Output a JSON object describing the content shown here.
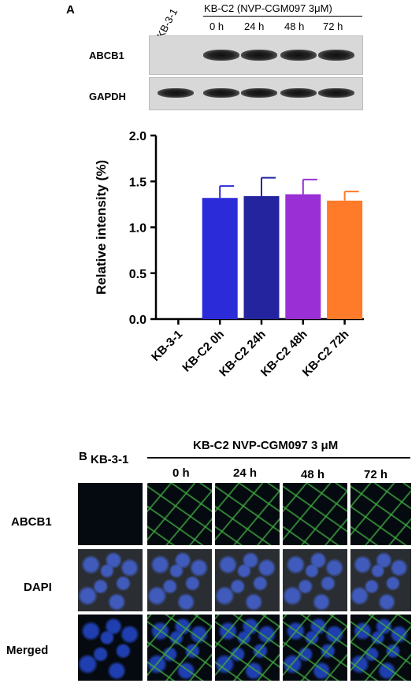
{
  "panel_a": {
    "letter": "A",
    "western_blot": {
      "lane_labels": [
        "KB-3-1",
        "0 h",
        "24 h",
        "48 h",
        "72 h"
      ],
      "group_header": "KB-C2 (NVP-CGM097 3μM)",
      "rows": [
        {
          "label": "ABCB1",
          "band_intensity": [
            0,
            1,
            1,
            1,
            1
          ]
        },
        {
          "label": "GAPDH",
          "band_intensity": [
            1,
            1,
            1,
            1,
            1
          ]
        }
      ]
    }
  },
  "chart_data": {
    "type": "bar",
    "categories": [
      "KB-3-1",
      "KB-C2 0h",
      "KB-C2 24h",
      "KB-C2 48h",
      "KB-C2 72h"
    ],
    "values": [
      0.0,
      1.32,
      1.34,
      1.36,
      1.29
    ],
    "errors": [
      0.0,
      0.13,
      0.2,
      0.16,
      0.1
    ],
    "colors": [
      "#2b2bd9",
      "#2b2bd9",
      "#24249e",
      "#9a2fd6",
      "#ff7a29"
    ],
    "ylabel": "Relative intensity (%)",
    "ylim": [
      0,
      2.0
    ],
    "yticks": [
      "0.0",
      "0.5",
      "1.0",
      "1.5",
      "2.0"
    ],
    "grid": false
  },
  "panel_b": {
    "letter": "B",
    "control_label": "KB-3-1",
    "group_header": "KB-C2 NVP-CGM097 3 μM",
    "time_labels": [
      "0 h",
      "24 h",
      "48 h",
      "72 h"
    ],
    "row_labels": [
      "ABCB1",
      "DAPI",
      "Merged"
    ],
    "colors": {
      "abcb1_stain": "#3fa83f",
      "dapi_stain": "#1f3fb0",
      "background": "#050a10"
    }
  }
}
